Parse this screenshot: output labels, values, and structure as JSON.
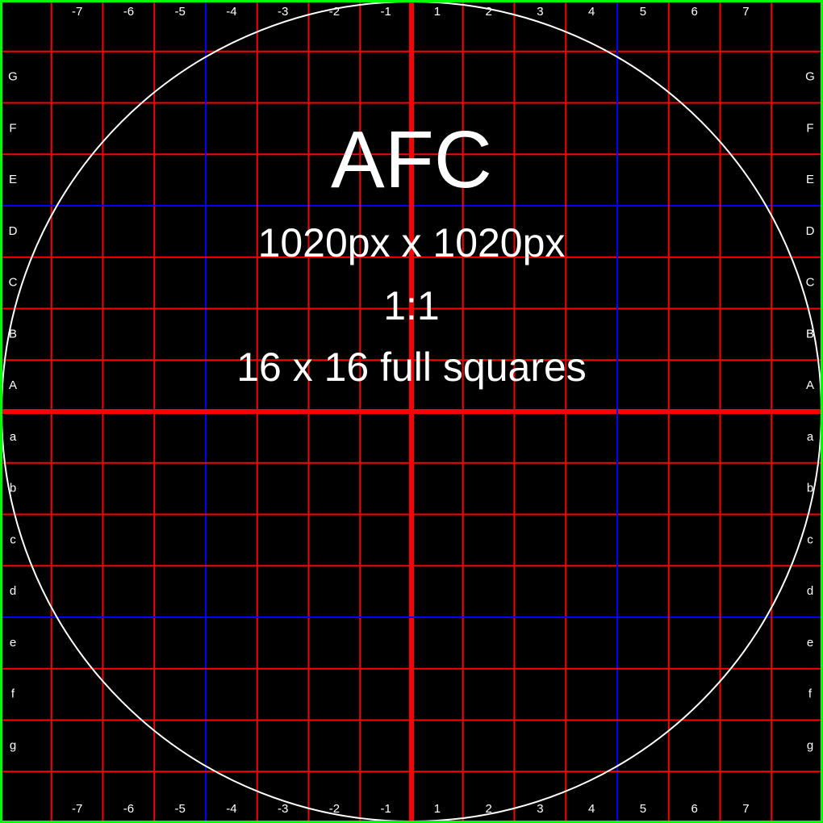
{
  "title": "AFC",
  "dimensions_text": "1020px x 1020px",
  "ratio_text": "1:1",
  "squares_text": "16 x 16 full squares",
  "grid": {
    "cells": 16,
    "column_labels": [
      "-7",
      "-6",
      "-5",
      "-4",
      "-3",
      "-2",
      "-1",
      "1",
      "2",
      "3",
      "4",
      "5",
      "6",
      "7"
    ],
    "row_labels": [
      "G",
      "F",
      "E",
      "D",
      "C",
      "B",
      "A",
      "a",
      "b",
      "c",
      "d",
      "e",
      "f",
      "g"
    ]
  },
  "colors": {
    "background": "#000000",
    "grid_line": "#ff0000",
    "quarter_line": "#0000ff",
    "center_line": "#ff0000",
    "circle": "#ffffff",
    "border": "#00ff00",
    "text": "#ffffff"
  }
}
